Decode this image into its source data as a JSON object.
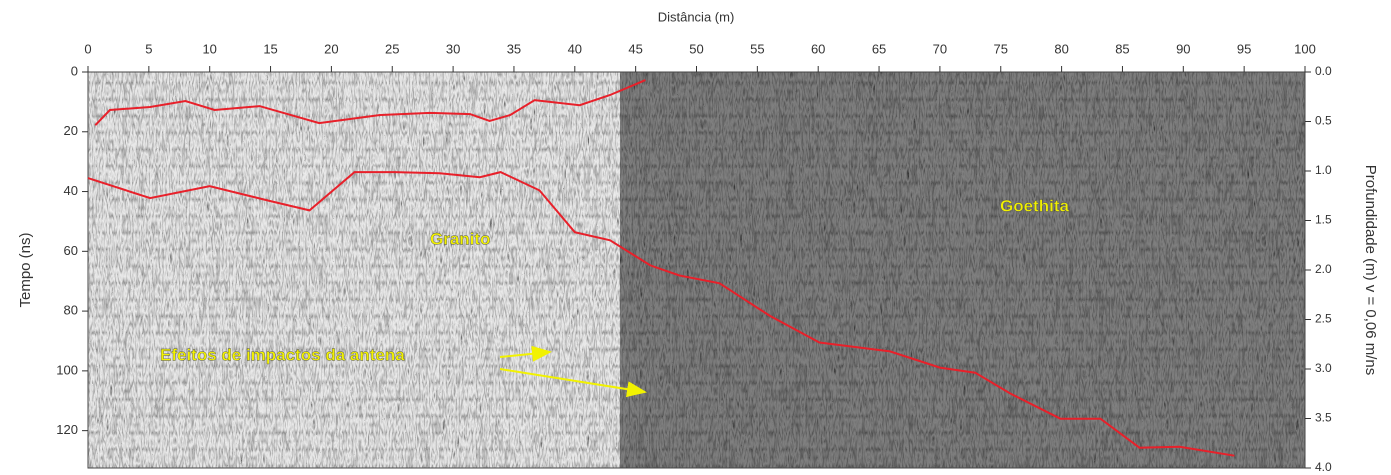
{
  "chart_data": {
    "type": "line",
    "xlabel": "Distância (m)",
    "ylabel": "Tempo (ns)",
    "y2label": "Profundidade (m) v = 0,06 m/ns",
    "xlim": [
      0,
      100
    ],
    "xticks": [
      0,
      5,
      10,
      15,
      20,
      25,
      30,
      35,
      40,
      45,
      50,
      55,
      60,
      65,
      70,
      75,
      80,
      85,
      90,
      95,
      100
    ],
    "ylim": [
      0,
      132.5
    ],
    "yticks": [
      0,
      20,
      40,
      60,
      80,
      100,
      120
    ],
    "y2lim": [
      0,
      4
    ],
    "y2ticks": [
      {
        "value": 0,
        "label": "0.0"
      },
      0.5,
      {
        "value": 1,
        "label": "1.0"
      },
      1.5,
      {
        "value": 2,
        "label": "2.0"
      },
      2.5,
      {
        "value": 3,
        "label": "3.0"
      },
      3.5,
      {
        "value": 4,
        "label": "4.0"
      }
    ],
    "y_inverted": true,
    "series": [
      {
        "color": "#e8202a",
        "x": [
          0.6,
          1.8,
          5.1,
          8,
          10.4,
          14.1,
          19,
          24,
          28.1,
          31.4,
          33,
          34.7,
          36.7,
          40.4,
          42.9,
          45.8
        ],
        "values": [
          17.8,
          12.7,
          11.7,
          9.7,
          12.7,
          11.4,
          17.1,
          14.4,
          13.7,
          14.1,
          16.4,
          14.4,
          9.4,
          11.1,
          7.7,
          2.7
        ]
      },
      {
        "color": "#e8202a",
        "x": [
          0,
          5.1,
          10,
          15,
          18.2,
          21.9,
          25.2,
          28.9,
          32.2,
          33.9,
          37.1,
          40,
          42.9,
          46.2,
          48.6,
          51.9,
          56,
          60.1,
          65.9,
          70,
          72.9,
          75.8,
          79.9,
          83.2,
          86.4,
          89.7,
          94.2
        ],
        "values": [
          35.5,
          42.2,
          38.2,
          43.2,
          46.3,
          33.5,
          33.5,
          33.9,
          35.2,
          33.5,
          39.6,
          53.6,
          56.3,
          64.7,
          68.1,
          70.7,
          81.5,
          90.5,
          93.5,
          98.9,
          100.6,
          107.6,
          116,
          116,
          125.7,
          125.4,
          128.4
        ]
      }
    ],
    "annotation_color": "#f2f200",
    "annotations": [
      "Granito",
      "Goethita",
      "Efeitos de impactos da antena"
    ]
  }
}
